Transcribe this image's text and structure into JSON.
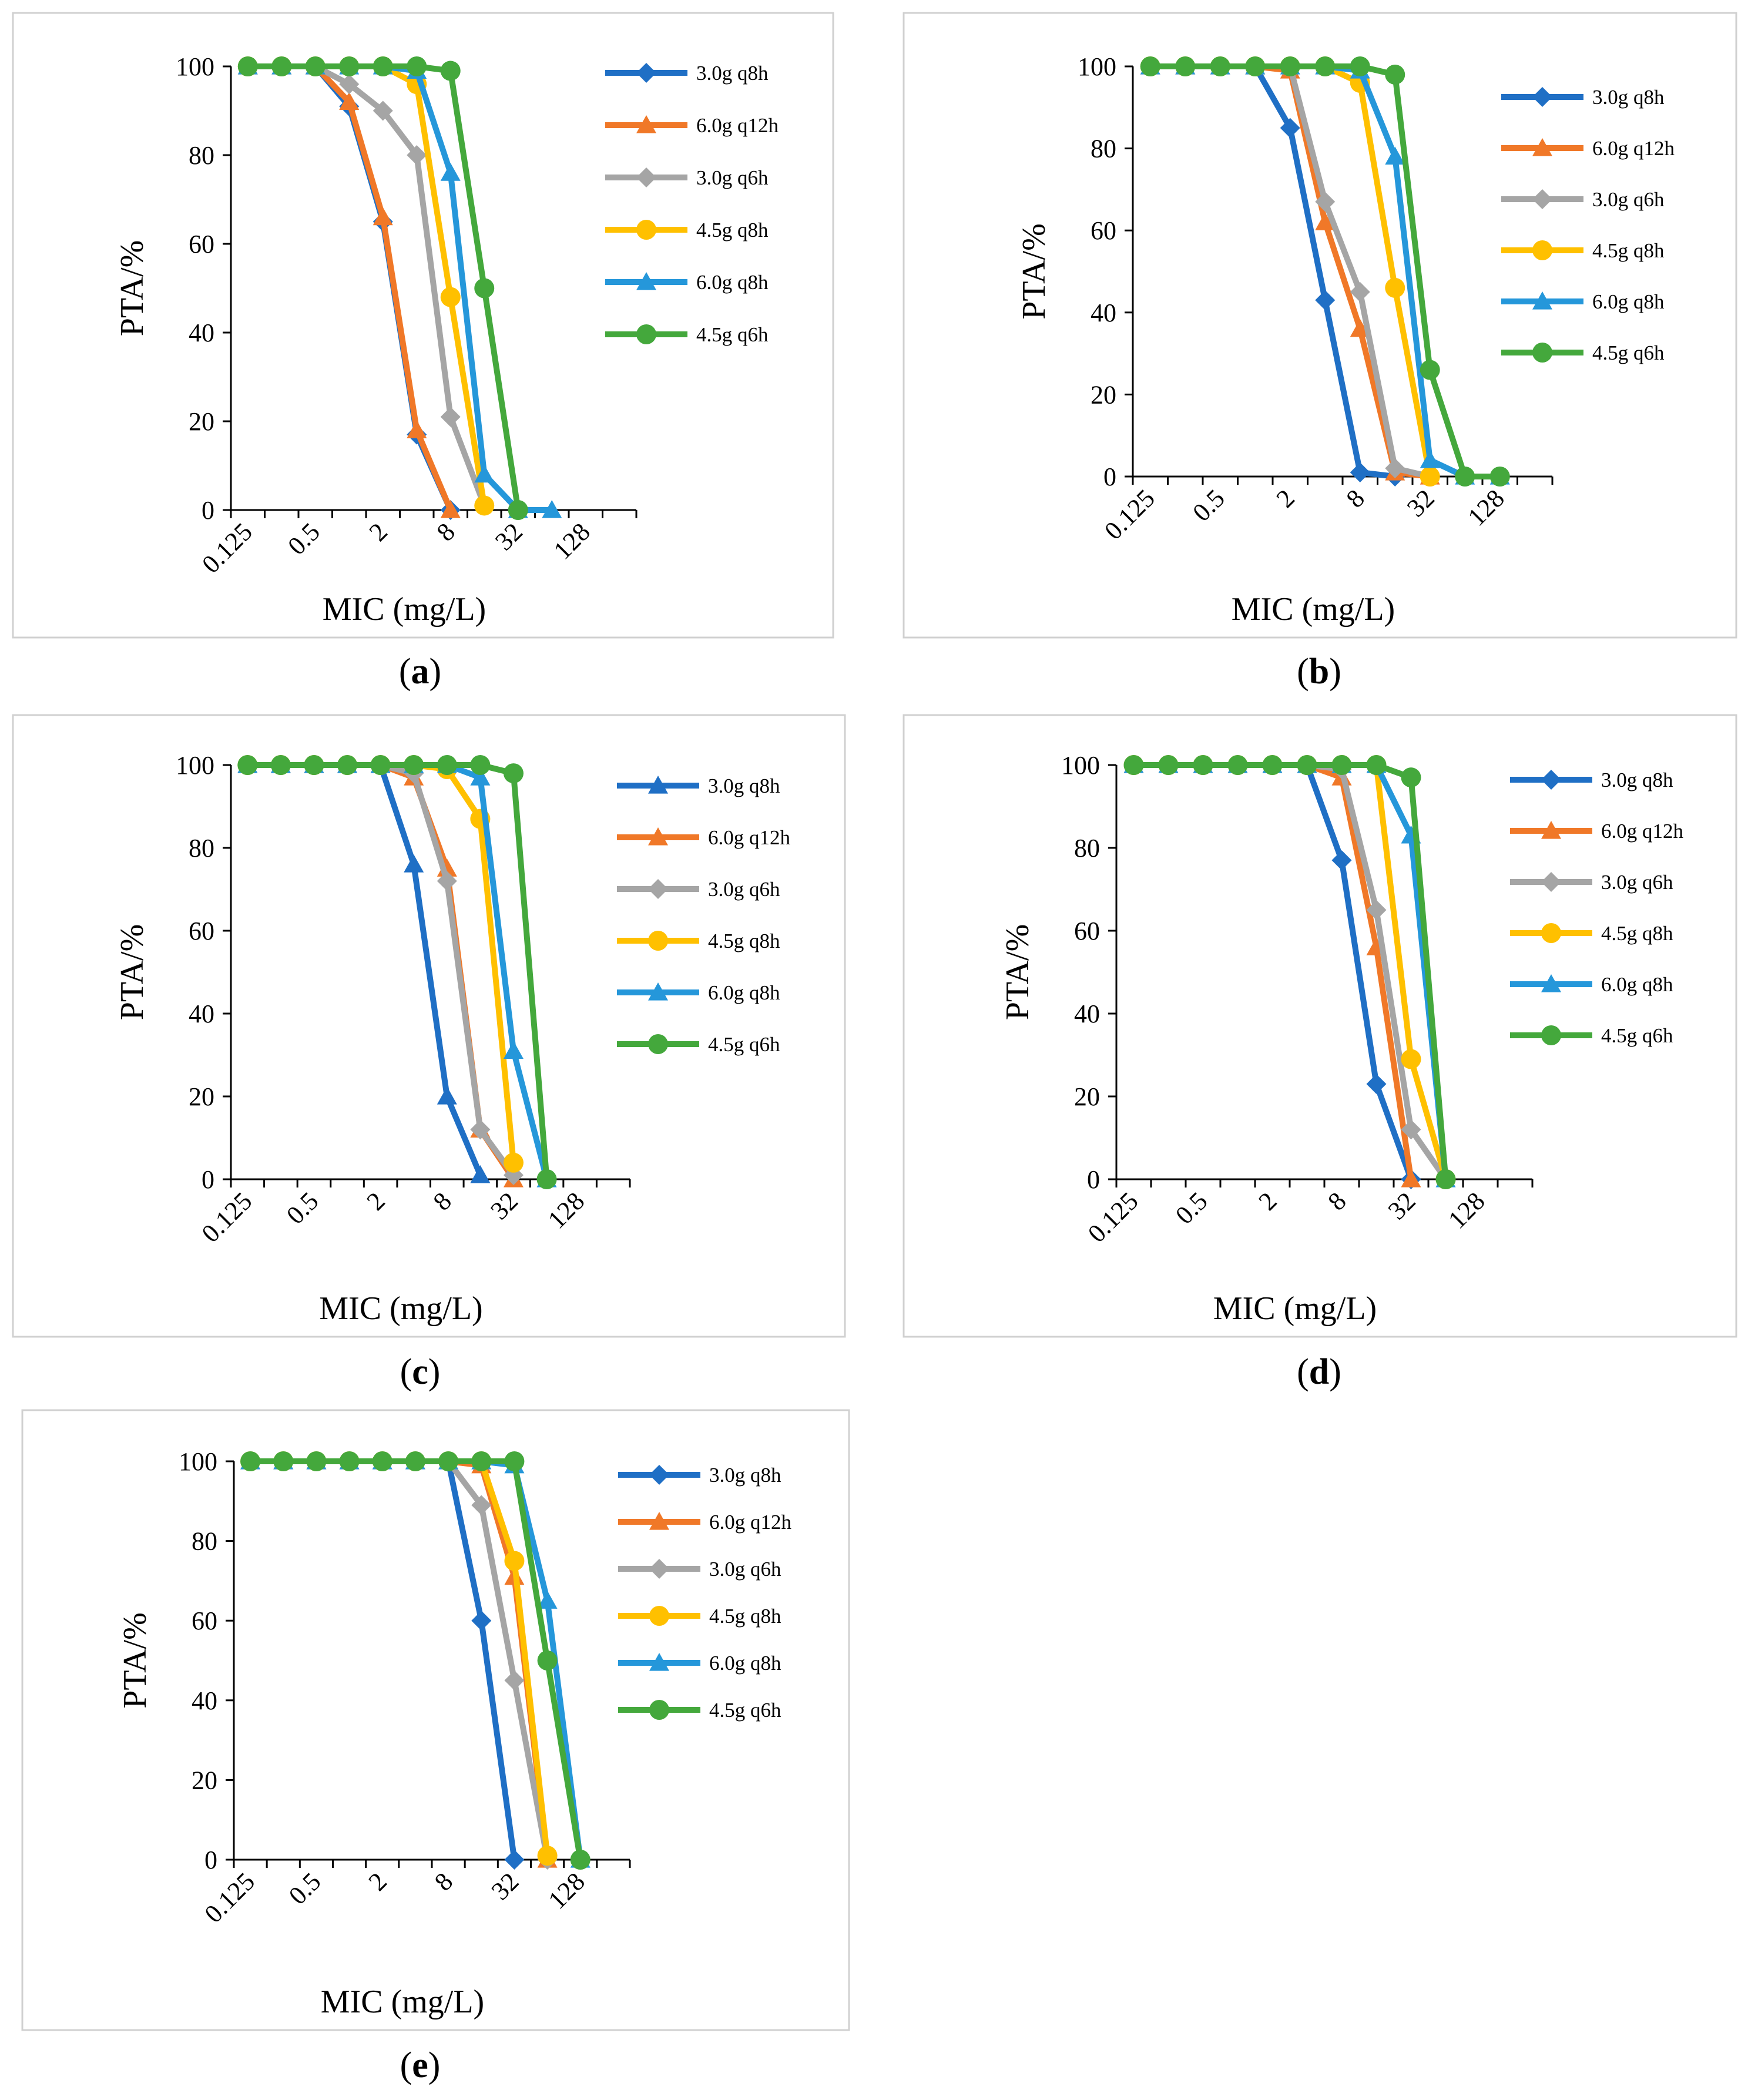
{
  "figure": {
    "panel_labels": [
      "a",
      "b",
      "c",
      "d",
      "e"
    ]
  },
  "colors": {
    "3.0g q8h": "#1F6FC5",
    "6.0g q12h": "#F07828",
    "3.0g q6h": "#A5A5A5",
    "4.5g q8h": "#FFC000",
    "6.0g q8h": "#2597DA",
    "4.5g q6h": "#44A83C",
    "frame": "#D0D0D0",
    "axis": "#000000"
  },
  "chart_data": [
    {
      "panel": "a",
      "type": "line",
      "xlabel": "MIC (mg/L)",
      "ylabel": "PTA/%",
      "x_scale": "log2",
      "x": [
        0.125,
        0.25,
        0.5,
        1,
        2,
        4,
        8,
        16,
        32,
        64,
        128,
        256
      ],
      "x_tick_labels": [
        "0.125",
        "0.5",
        "2",
        "8",
        "32",
        "128"
      ],
      "x_tick_values": [
        0.125,
        0.5,
        2,
        8,
        32,
        128
      ],
      "ylim": [
        0,
        100
      ],
      "y_ticks": [
        0,
        20,
        40,
        60,
        80,
        100
      ],
      "series": [
        {
          "name": "3.0g q8h",
          "marker": "diamond",
          "values": [
            100,
            100,
            100,
            91,
            65,
            17,
            0,
            null,
            null,
            null,
            null,
            null
          ]
        },
        {
          "name": "6.0g q12h",
          "marker": "triangle",
          "values": [
            100,
            100,
            100,
            92,
            66,
            18,
            0,
            null,
            null,
            null,
            null,
            null
          ]
        },
        {
          "name": "3.0g q6h",
          "marker": "diamond",
          "values": [
            100,
            100,
            100,
            96,
            90,
            80,
            21,
            1,
            null,
            null,
            null,
            null
          ]
        },
        {
          "name": "4.5g q8h",
          "marker": "circle",
          "values": [
            100,
            100,
            100,
            100,
            100,
            96,
            48,
            1,
            null,
            null,
            null,
            null
          ]
        },
        {
          "name": "6.0g q8h",
          "marker": "triangle",
          "values": [
            100,
            100,
            100,
            100,
            100,
            99,
            76,
            8,
            0,
            0,
            null,
            null
          ]
        },
        {
          "name": "4.5g q6h",
          "marker": "circle",
          "values": [
            100,
            100,
            100,
            100,
            100,
            100,
            99,
            50,
            0,
            null,
            null,
            null
          ]
        }
      ]
    },
    {
      "panel": "b",
      "type": "line",
      "xlabel": "MIC (mg/L)",
      "ylabel": "PTA/%",
      "x_scale": "log2",
      "x": [
        0.125,
        0.25,
        0.5,
        1,
        2,
        4,
        8,
        16,
        32,
        64,
        128,
        256
      ],
      "x_tick_labels": [
        "0.125",
        "0.5",
        "2",
        "8",
        "32",
        "128"
      ],
      "x_tick_values": [
        0.125,
        0.5,
        2,
        8,
        32,
        128
      ],
      "ylim": [
        0,
        100
      ],
      "y_ticks": [
        0,
        20,
        40,
        60,
        80,
        100
      ],
      "series": [
        {
          "name": "3.0g q8h",
          "marker": "diamond",
          "values": [
            100,
            100,
            100,
            100,
            85,
            43,
            1,
            0,
            null,
            null,
            null,
            null
          ]
        },
        {
          "name": "6.0g q12h",
          "marker": "triangle",
          "values": [
            100,
            100,
            100,
            100,
            99,
            62,
            36,
            1,
            0,
            null,
            null,
            null
          ]
        },
        {
          "name": "3.0g q6h",
          "marker": "diamond",
          "values": [
            100,
            100,
            100,
            100,
            100,
            67,
            45,
            2,
            0,
            null,
            null,
            null
          ]
        },
        {
          "name": "4.5g q8h",
          "marker": "circle",
          "values": [
            100,
            100,
            100,
            100,
            100,
            100,
            96,
            46,
            0,
            null,
            null,
            null
          ]
        },
        {
          "name": "6.0g q8h",
          "marker": "triangle",
          "values": [
            100,
            100,
            100,
            100,
            100,
            100,
            99,
            78,
            4,
            0,
            0,
            null
          ]
        },
        {
          "name": "4.5g q6h",
          "marker": "circle",
          "values": [
            100,
            100,
            100,
            100,
            100,
            100,
            100,
            98,
            26,
            0,
            0,
            null
          ]
        }
      ]
    },
    {
      "panel": "c",
      "type": "line",
      "xlabel": "MIC (mg/L)",
      "ylabel": "PTA/%",
      "x_scale": "log2",
      "x": [
        0.125,
        0.25,
        0.5,
        1,
        2,
        4,
        8,
        16,
        32,
        64,
        128,
        256
      ],
      "x_tick_labels": [
        "0.125",
        "0.5",
        "2",
        "8",
        "32",
        "128"
      ],
      "x_tick_values": [
        0.125,
        0.5,
        2,
        8,
        32,
        128
      ],
      "ylim": [
        0,
        100
      ],
      "y_ticks": [
        0,
        20,
        40,
        60,
        80,
        100
      ],
      "series": [
        {
          "name": "3.0g q8h",
          "marker": "triangle",
          "values": [
            100,
            100,
            100,
            100,
            100,
            76,
            20,
            1,
            null,
            null,
            null,
            null
          ]
        },
        {
          "name": "6.0g q12h",
          "marker": "triangle",
          "values": [
            100,
            100,
            100,
            100,
            100,
            97,
            75,
            12,
            0,
            null,
            null,
            null
          ]
        },
        {
          "name": "3.0g q6h",
          "marker": "diamond",
          "values": [
            100,
            100,
            100,
            100,
            100,
            98,
            72,
            12,
            1,
            null,
            null,
            null
          ]
        },
        {
          "name": "4.5g q8h",
          "marker": "circle",
          "values": [
            100,
            100,
            100,
            100,
            100,
            100,
            99,
            87,
            4,
            null,
            null,
            null
          ]
        },
        {
          "name": "6.0g q8h",
          "marker": "triangle",
          "values": [
            100,
            100,
            100,
            100,
            100,
            100,
            100,
            97,
            31,
            0,
            null,
            null
          ]
        },
        {
          "name": "4.5g q6h",
          "marker": "circle",
          "values": [
            100,
            100,
            100,
            100,
            100,
            100,
            100,
            100,
            98,
            0,
            null,
            null
          ]
        }
      ]
    },
    {
      "panel": "d",
      "type": "line",
      "xlabel": "MIC (mg/L)",
      "ylabel": "PTA/%",
      "x_scale": "log2",
      "x": [
        0.125,
        0.25,
        0.5,
        1,
        2,
        4,
        8,
        16,
        32,
        64,
        128,
        256
      ],
      "x_tick_labels": [
        "0.125",
        "0.5",
        "2",
        "8",
        "32",
        "128"
      ],
      "x_tick_values": [
        0.125,
        0.5,
        2,
        8,
        32,
        128
      ],
      "ylim": [
        0,
        100
      ],
      "y_ticks": [
        0,
        20,
        40,
        60,
        80,
        100
      ],
      "series": [
        {
          "name": "3.0g q8h",
          "marker": "diamond",
          "values": [
            100,
            100,
            100,
            100,
            100,
            100,
            77,
            23,
            0,
            null,
            null,
            null
          ]
        },
        {
          "name": "6.0g q12h",
          "marker": "triangle",
          "values": [
            100,
            100,
            100,
            100,
            100,
            100,
            97,
            56,
            0,
            null,
            null,
            null
          ]
        },
        {
          "name": "3.0g q6h",
          "marker": "diamond",
          "values": [
            100,
            100,
            100,
            100,
            100,
            100,
            99,
            65,
            12,
            0,
            null,
            null
          ]
        },
        {
          "name": "4.5g q8h",
          "marker": "circle",
          "values": [
            100,
            100,
            100,
            100,
            100,
            100,
            100,
            100,
            29,
            0,
            null,
            null
          ]
        },
        {
          "name": "6.0g q8h",
          "marker": "triangle",
          "values": [
            100,
            100,
            100,
            100,
            100,
            100,
            100,
            100,
            83,
            0,
            null,
            null
          ]
        },
        {
          "name": "4.5g q6h",
          "marker": "circle",
          "values": [
            100,
            100,
            100,
            100,
            100,
            100,
            100,
            100,
            97,
            0,
            null,
            null
          ]
        }
      ]
    },
    {
      "panel": "e",
      "type": "line",
      "xlabel": "MIC (mg/L)",
      "ylabel": "PTA/%",
      "x_scale": "log2",
      "x": [
        0.125,
        0.25,
        0.5,
        1,
        2,
        4,
        8,
        16,
        32,
        64,
        128,
        256
      ],
      "x_tick_labels": [
        "0.125",
        "0.5",
        "2",
        "8",
        "32",
        "128"
      ],
      "x_tick_values": [
        0.125,
        0.5,
        2,
        8,
        32,
        128
      ],
      "ylim": [
        0,
        100
      ],
      "y_ticks": [
        0,
        20,
        40,
        60,
        80,
        100
      ],
      "series": [
        {
          "name": "3.0g q8h",
          "marker": "diamond",
          "values": [
            100,
            100,
            100,
            100,
            100,
            100,
            100,
            60,
            0,
            null,
            null,
            null
          ]
        },
        {
          "name": "6.0g q12h",
          "marker": "triangle",
          "values": [
            100,
            100,
            100,
            100,
            100,
            100,
            100,
            99,
            71,
            0,
            null,
            null
          ]
        },
        {
          "name": "3.0g q6h",
          "marker": "diamond",
          "values": [
            100,
            100,
            100,
            100,
            100,
            100,
            100,
            89,
            45,
            0,
            null,
            null
          ]
        },
        {
          "name": "4.5g q8h",
          "marker": "circle",
          "values": [
            100,
            100,
            100,
            100,
            100,
            100,
            100,
            100,
            75,
            1,
            null,
            null
          ]
        },
        {
          "name": "6.0g q8h",
          "marker": "triangle",
          "values": [
            100,
            100,
            100,
            100,
            100,
            100,
            100,
            100,
            99,
            65,
            0,
            null
          ]
        },
        {
          "name": "4.5g q6h",
          "marker": "circle",
          "values": [
            100,
            100,
            100,
            100,
            100,
            100,
            100,
            100,
            100,
            50,
            0,
            null
          ]
        }
      ]
    }
  ]
}
